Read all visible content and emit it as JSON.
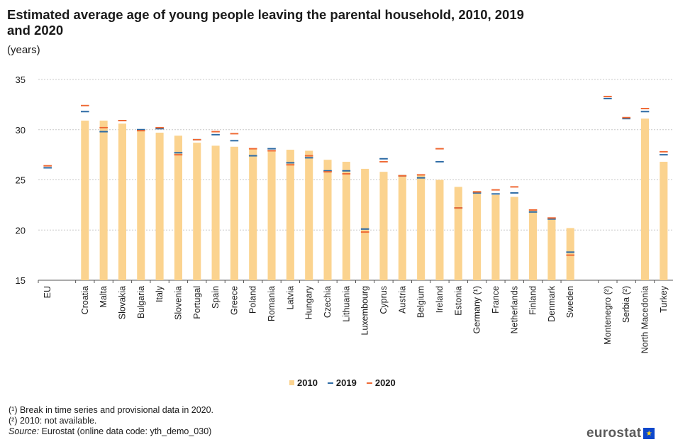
{
  "title": "Estimated average age of young people leaving the parental household, 2010, 2019 and 2020",
  "subtitle": "(years)",
  "notes": {
    "note1": "(¹) Break in time series and provisional data in 2020.",
    "note2": "(²) 2010: not available.",
    "source_label": "Source:",
    "source_text": " Eurostat (online data code: yth_demo_030)"
  },
  "logo": {
    "text": "eurostat",
    "icon": "eu-flag-icon"
  },
  "colors": {
    "bar_2010": "#fbd38f",
    "line_2019": "#2d6ba5",
    "line_2020": "#ef6a35",
    "grid": "#c8c8c8",
    "axis": "#555555"
  },
  "chart_data": {
    "type": "bar",
    "title": "Estimated average age of young people leaving the parental household, 2010, 2019 and 2020",
    "subtitle": "(years)",
    "ylim": [
      15,
      35
    ],
    "yticks": [
      15,
      20,
      25,
      30,
      35
    ],
    "grid": true,
    "legend_position": "bottom-center",
    "categories": [
      "EU",
      "Croatia",
      "Malta",
      "Slovakia",
      "Bulgaria",
      "Italy",
      "Slovenia",
      "Portugal",
      "Spain",
      "Greece",
      "Poland",
      "Romania",
      "Latvia",
      "Hungary",
      "Czechia",
      "Lithuania",
      "Luxembourg",
      "Cyprus",
      "Austria",
      "Belgium",
      "Ireland",
      "Estonia",
      "Germany (¹)",
      "France",
      "Netherlands",
      "Finland",
      "Denmark",
      "Sweden",
      "Montenegro (²)",
      "Serbia (²)",
      "North Macedonia",
      "Turkey"
    ],
    "group_breaks_after": [
      "EU",
      "Sweden"
    ],
    "series": [
      {
        "name": "2010",
        "style": "bar",
        "values": [
          null,
          30.9,
          30.9,
          30.6,
          30.0,
          29.7,
          29.4,
          28.7,
          28.4,
          28.3,
          28.1,
          27.9,
          28.0,
          27.9,
          27.0,
          26.8,
          26.1,
          25.8,
          25.5,
          25.5,
          25.0,
          24.3,
          23.9,
          23.5,
          23.3,
          22.0,
          21.1,
          20.2,
          null,
          null,
          31.1,
          26.8
        ]
      },
      {
        "name": "2019",
        "style": "marker",
        "values": [
          26.2,
          31.8,
          29.8,
          30.9,
          30.0,
          30.1,
          27.7,
          29.0,
          29.5,
          28.9,
          27.4,
          28.1,
          26.7,
          27.2,
          25.9,
          25.9,
          20.1,
          27.1,
          25.4,
          25.2,
          26.8,
          22.2,
          23.7,
          23.6,
          23.7,
          21.8,
          21.1,
          17.8,
          33.1,
          31.1,
          31.8,
          27.5
        ]
      },
      {
        "name": "2020",
        "style": "marker",
        "values": [
          26.4,
          32.4,
          30.2,
          30.9,
          29.9,
          30.2,
          27.5,
          29.0,
          29.8,
          29.6,
          28.1,
          27.9,
          26.5,
          27.4,
          25.8,
          25.6,
          19.8,
          26.8,
          25.4,
          25.5,
          28.1,
          22.2,
          23.8,
          24.0,
          24.3,
          22.0,
          21.2,
          17.5,
          33.3,
          31.2,
          32.1,
          27.8
        ]
      }
    ]
  }
}
